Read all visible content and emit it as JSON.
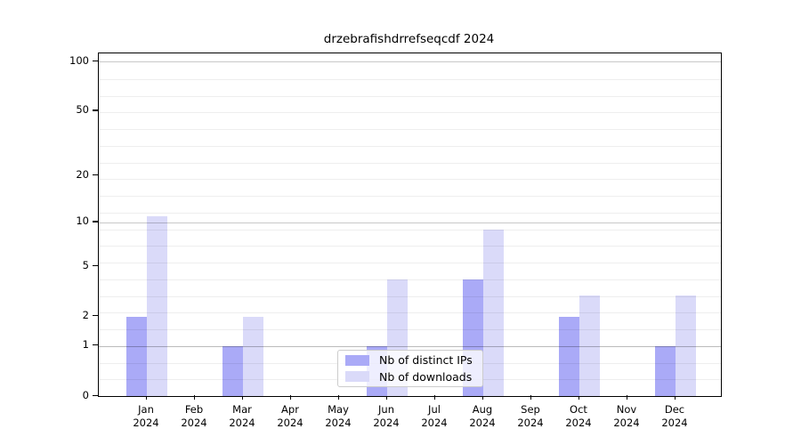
{
  "chart_data": {
    "type": "bar",
    "title": "drzebrafishdrrefseqcdf 2024",
    "year": "2024",
    "categories": [
      "Jan",
      "Feb",
      "Mar",
      "Apr",
      "May",
      "Jun",
      "Jul",
      "Aug",
      "Sep",
      "Oct",
      "Nov",
      "Dec"
    ],
    "series": [
      {
        "name": "Nb of distinct IPs",
        "color": "#aaaaf7",
        "values": [
          2,
          0,
          1,
          0,
          0,
          1,
          0,
          4,
          0,
          2,
          0,
          1
        ]
      },
      {
        "name": "Nb of downloads",
        "color": "#dadaf9",
        "values": [
          11,
          0,
          2,
          0,
          0,
          4,
          0,
          9,
          0,
          3,
          0,
          3
        ]
      }
    ],
    "yticks": [
      0,
      1,
      2,
      5,
      10,
      20,
      50,
      100
    ],
    "yscale": "log10(value+1)",
    "ylim": [
      0,
      110
    ],
    "xlabel": "",
    "ylabel": "",
    "grid": true,
    "legend_position": "lower center",
    "colors": {
      "axis": "#000000",
      "grid_major": "#cccccc",
      "grid_minor": "#efefef",
      "background": "#ffffff"
    }
  }
}
